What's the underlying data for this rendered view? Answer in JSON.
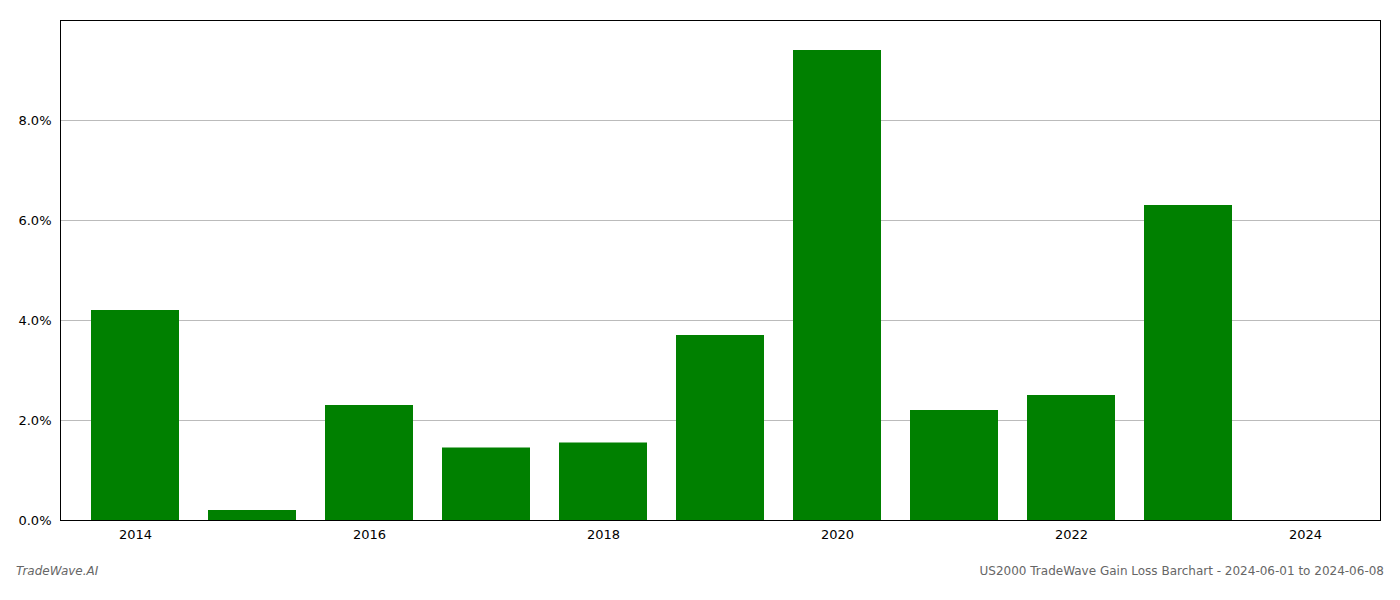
{
  "chart_data": {
    "type": "bar",
    "title": "US2000 TradeWave Gain Loss Barchart - 2024-06-01 to 2024-06-08",
    "annotations": [
      "TradeWave.AI"
    ],
    "categories": [
      "2014",
      null,
      "2016",
      null,
      "2018",
      null,
      "2020",
      null,
      "2022",
      null,
      "2024"
    ],
    "values": [
      0.042,
      0.002,
      0.023,
      0.0145,
      0.0155,
      0.037,
      0.094,
      0.022,
      0.025,
      0.063,
      0.0
    ],
    "color": "#008000",
    "ylim": [
      0,
      0.1
    ],
    "yticks": [
      {
        "value": 0.0,
        "label": "0.0%"
      },
      {
        "value": 0.02,
        "label": "2.0%"
      },
      {
        "value": 0.04,
        "label": "4.0%"
      },
      {
        "value": 0.06,
        "label": "6.0%"
      },
      {
        "value": 0.08,
        "label": "8.0%"
      }
    ],
    "grid": true
  }
}
